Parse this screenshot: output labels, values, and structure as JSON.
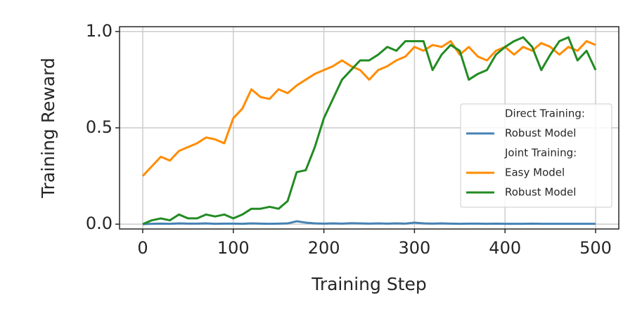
{
  "chart_data": {
    "type": "line",
    "x_label": "Training Step",
    "y_label": "Training Reward",
    "x": [
      0,
      10,
      20,
      30,
      40,
      50,
      60,
      70,
      80,
      90,
      100,
      110,
      120,
      130,
      140,
      150,
      160,
      170,
      180,
      190,
      200,
      210,
      220,
      230,
      240,
      250,
      260,
      270,
      280,
      290,
      300,
      310,
      320,
      330,
      340,
      350,
      360,
      370,
      380,
      390,
      400,
      410,
      420,
      430,
      440,
      450,
      460,
      470,
      480,
      490,
      500
    ],
    "groups": [
      {
        "title": "Direct Training:",
        "series": [
          {
            "name": "Robust Model",
            "color": "#4682b4",
            "values": [
              0.0,
              0.002,
              0.003,
              0.002,
              0.004,
              0.003,
              0.003,
              0.004,
              0.002,
              0.003,
              0.003,
              0.002,
              0.004,
              0.003,
              0.002,
              0.003,
              0.004,
              0.015,
              0.008,
              0.004,
              0.003,
              0.004,
              0.003,
              0.005,
              0.004,
              0.003,
              0.004,
              0.003,
              0.004,
              0.003,
              0.008,
              0.004,
              0.003,
              0.004,
              0.003,
              0.002,
              0.003,
              0.003,
              0.002,
              0.003,
              0.002,
              0.002,
              0.002,
              0.003,
              0.002,
              0.002,
              0.002,
              0.002,
              0.002,
              0.002,
              0.002
            ]
          }
        ]
      },
      {
        "title": "Joint Training:",
        "series": [
          {
            "name": "Easy Model",
            "color": "#ff8c00",
            "values": [
              0.25,
              0.3,
              0.35,
              0.33,
              0.38,
              0.4,
              0.42,
              0.45,
              0.44,
              0.42,
              0.55,
              0.6,
              0.7,
              0.66,
              0.65,
              0.7,
              0.68,
              0.72,
              0.75,
              0.78,
              0.8,
              0.82,
              0.85,
              0.82,
              0.8,
              0.75,
              0.8,
              0.82,
              0.85,
              0.87,
              0.92,
              0.9,
              0.93,
              0.92,
              0.95,
              0.88,
              0.92,
              0.87,
              0.85,
              0.9,
              0.92,
              0.88,
              0.92,
              0.9,
              0.94,
              0.92,
              0.88,
              0.92,
              0.9,
              0.95,
              0.93
            ]
          },
          {
            "name": "Robust Model",
            "color": "#228b22",
            "values": [
              0.0,
              0.02,
              0.03,
              0.02,
              0.05,
              0.03,
              0.03,
              0.05,
              0.04,
              0.05,
              0.03,
              0.05,
              0.08,
              0.08,
              0.09,
              0.08,
              0.12,
              0.27,
              0.28,
              0.4,
              0.55,
              0.65,
              0.75,
              0.8,
              0.85,
              0.85,
              0.88,
              0.92,
              0.9,
              0.95,
              0.95,
              0.95,
              0.8,
              0.88,
              0.93,
              0.9,
              0.75,
              0.78,
              0.8,
              0.88,
              0.92,
              0.95,
              0.97,
              0.92,
              0.8,
              0.88,
              0.95,
              0.97,
              0.85,
              0.9,
              0.8
            ]
          }
        ]
      }
    ],
    "xlim": [
      -25.6,
      525.6
    ],
    "ylim": [
      -0.025,
      1.025
    ],
    "xticks": [
      0,
      100,
      200,
      300,
      400,
      500
    ],
    "yticks": [
      {
        "value": 0,
        "label": "0.0"
      },
      0.5,
      {
        "value": 1,
        "label": "1.0"
      }
    ],
    "grid": true,
    "legend": "center right"
  }
}
